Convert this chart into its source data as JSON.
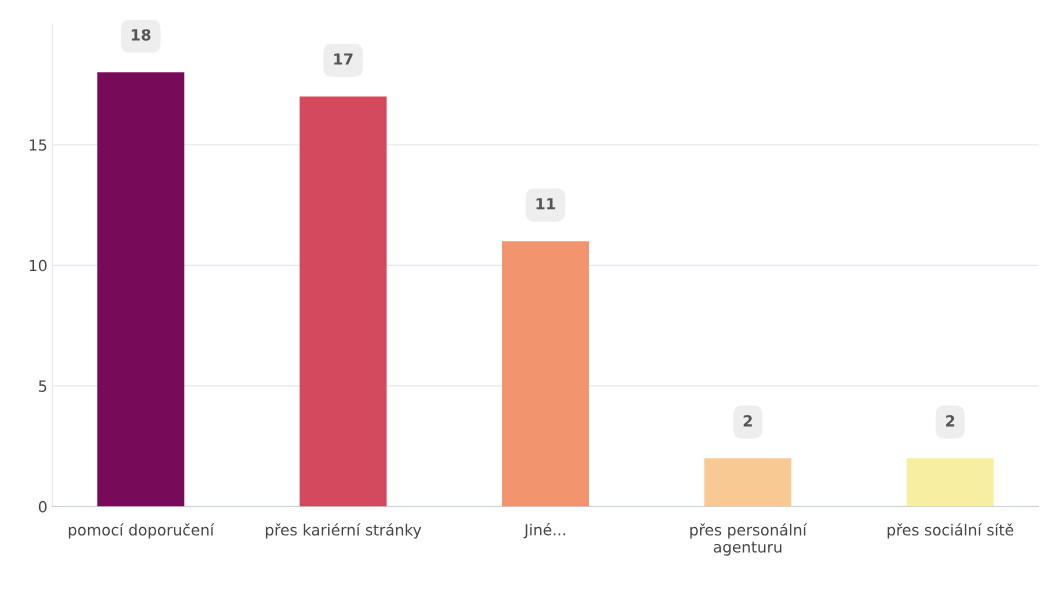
{
  "chart_data": {
    "type": "bar",
    "categories": [
      "pomocí doporučení",
      "přes kariérní stránky",
      "Jiné...",
      "přes personální\nagenturu",
      "přes sociální sítě"
    ],
    "values": [
      18,
      17,
      11,
      2,
      2
    ],
    "colors": [
      "#780a5a",
      "#d4495c",
      "#f2956f",
      "#f8c993",
      "#f7ee9f"
    ],
    "ylim": [
      0,
      20
    ],
    "yticks": [
      0,
      5,
      10,
      15
    ],
    "grid": "y",
    "data_labels": true,
    "legend": false
  }
}
